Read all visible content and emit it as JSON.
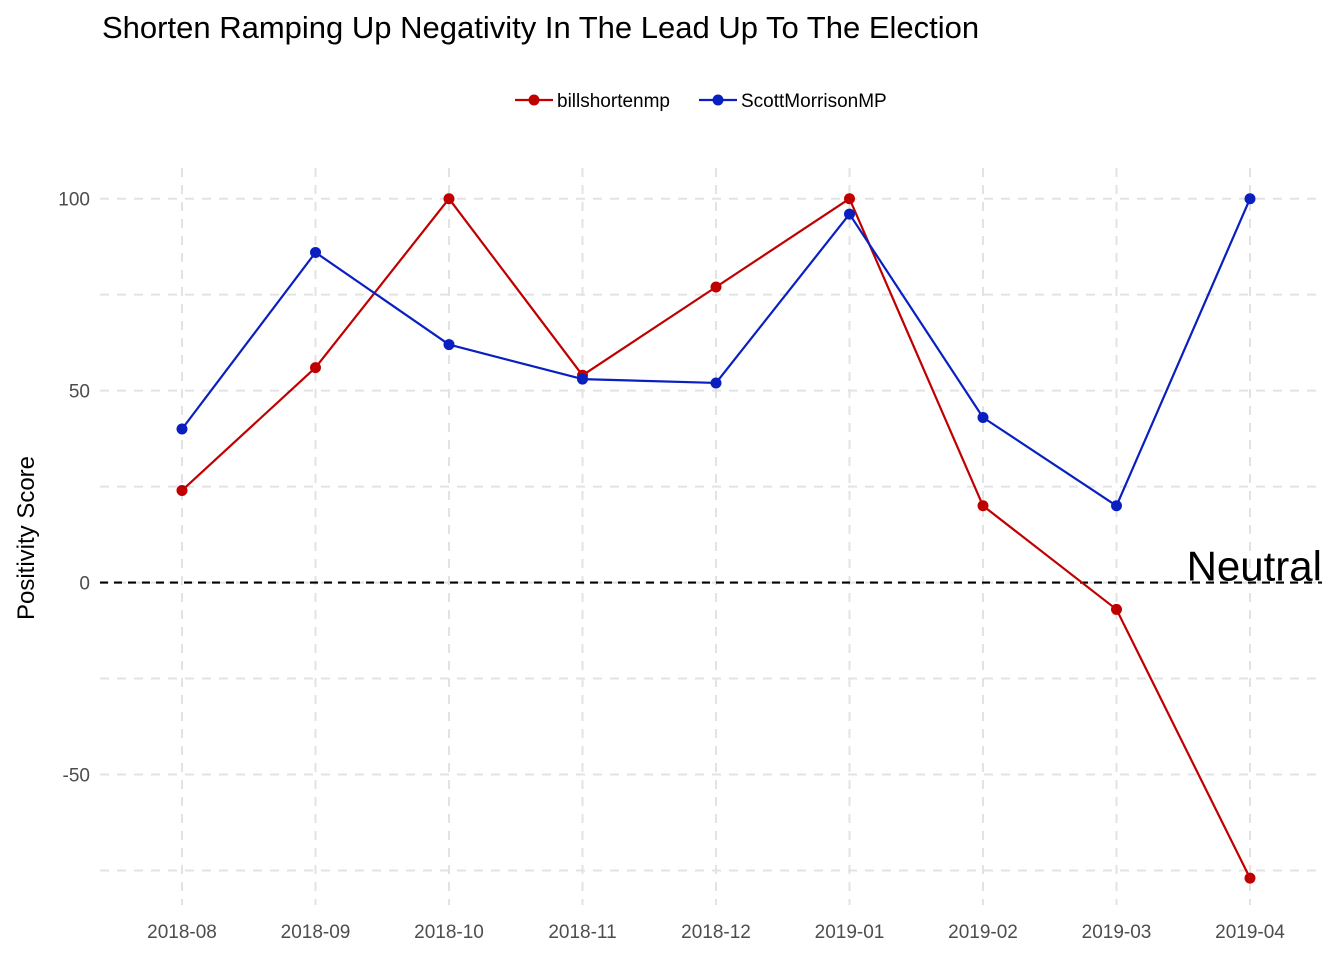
{
  "chart_data": {
    "type": "line",
    "title": "Shorten Ramping Up Negativity In The Lead Up To The Election",
    "xlabel": "",
    "ylabel": "Positivity Score",
    "categories": [
      "2018-08",
      "2018-09",
      "2018-10",
      "2018-11",
      "2018-12",
      "2019-01",
      "2019-02",
      "2019-03",
      "2019-04"
    ],
    "yticks": [
      -50,
      0,
      50,
      100
    ],
    "ylim": [
      -84,
      108
    ],
    "grid": true,
    "legend": "top",
    "series": [
      {
        "name": "billshortenmp",
        "color": "#c00000",
        "values": [
          24,
          56,
          100,
          54,
          77,
          100,
          20,
          -7,
          -77
        ]
      },
      {
        "name": "ScottMorrisonMP",
        "color": "#0a1fc0",
        "values": [
          40,
          86,
          62,
          53,
          52,
          96,
          43,
          20,
          100
        ]
      }
    ],
    "reference_line": {
      "y": 0,
      "style": "dashed",
      "color": "#000000"
    },
    "annotations": [
      {
        "text": "Neutral",
        "y": 0,
        "position": "right"
      }
    ]
  }
}
